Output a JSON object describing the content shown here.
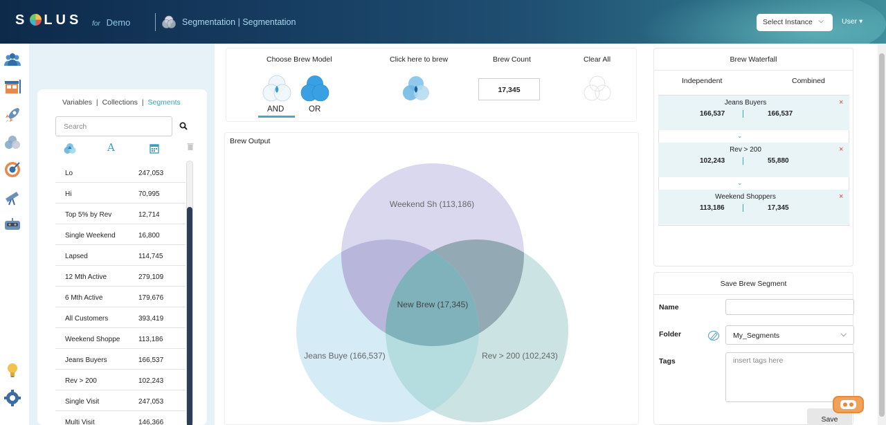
{
  "header": {
    "logo": "SOLUS",
    "for_label": "for",
    "org": "Demo",
    "title": "Segmentation |  Segmentation",
    "select_instance": "Select Instance",
    "user": "User ▾"
  },
  "segments": {
    "tabs": [
      "Variables",
      "Collections",
      "Segments"
    ],
    "active_tab": "Segments",
    "search_placeholder": "Search",
    "rows": [
      {
        "name": "Lo",
        "value": "247,053"
      },
      {
        "name": "Hi",
        "value": "70,995"
      },
      {
        "name": "Top 5% by Rev",
        "value": "12,714"
      },
      {
        "name": "Single Weekend",
        "value": "16,800"
      },
      {
        "name": "Lapsed",
        "value": "114,745"
      },
      {
        "name": "12 Mth Active",
        "value": "279,109"
      },
      {
        "name": "6 Mth Active",
        "value": "179,676"
      },
      {
        "name": "All Customers",
        "value": "393,419"
      },
      {
        "name": "Weekend Shoppe",
        "value": "113,186"
      },
      {
        "name": "Jeans Buyers",
        "value": "166,537"
      },
      {
        "name": "Rev > 200",
        "value": "102,243"
      },
      {
        "name": "Single Visit",
        "value": "247,053"
      },
      {
        "name": "Multi Visit",
        "value": "146,366"
      }
    ]
  },
  "brew": {
    "choose_model": "Choose Brew Model",
    "click_to_brew": "Click here to brew",
    "brew_count_label": "Brew Count",
    "brew_count": "17,345",
    "clear_all": "Clear All",
    "and_label": "AND",
    "or_label": "OR",
    "selected_model": "AND"
  },
  "output": {
    "title": "Brew Output",
    "venn": {
      "top": "Weekend Sh (113,186)",
      "left": "Jeans Buye (166,537)",
      "right": "Rev > 200 (102,243)",
      "center": "New Brew (17,345)"
    }
  },
  "waterfall": {
    "title": "Brew Waterfall",
    "independent": "Independent",
    "combined": "Combined",
    "steps": [
      {
        "name": "Jeans Buyers",
        "independent": "166,537",
        "combined": "166,537"
      },
      {
        "name": "Rev > 200",
        "independent": "102,243",
        "combined": "55,880"
      },
      {
        "name": "Weekend Shoppers",
        "independent": "113,186",
        "combined": "17,345"
      }
    ],
    "remove_symbol": "×",
    "chevron": "⌄"
  },
  "save": {
    "title": "Save Brew Segment",
    "name_label": "Name",
    "name_value": "",
    "folder_label": "Folder",
    "folder_value": "My_Segments",
    "tags_label": "Tags",
    "tags_placeholder": "insert tags here",
    "save_button": "Save"
  },
  "colors": {
    "accent": "#3a9dbd",
    "venn_top": "#d8d6ec",
    "venn_left": "#d4ebf6",
    "venn_right": "#c8e2e2",
    "remove": "#e23b3b"
  }
}
